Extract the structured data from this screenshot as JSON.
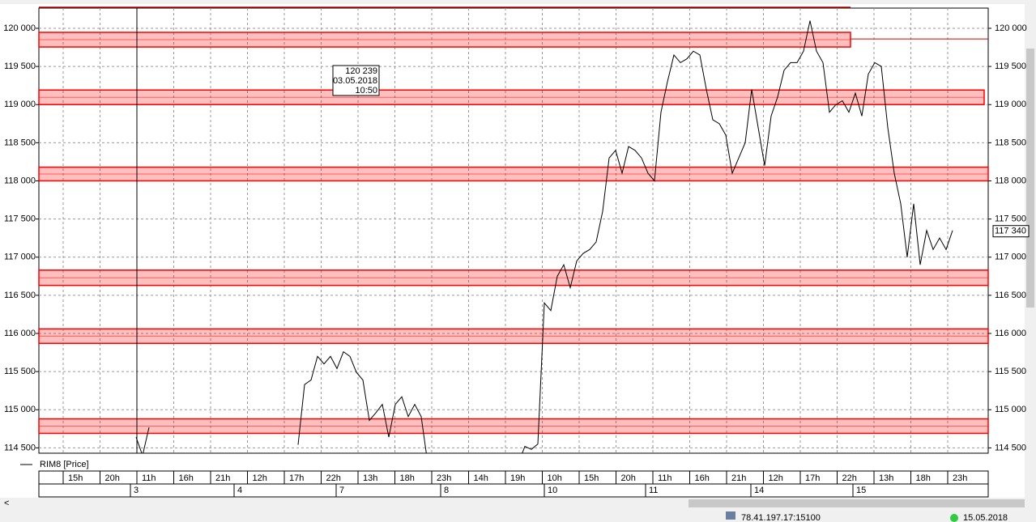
{
  "chart_data": {
    "type": "line",
    "ylim": [
      114430,
      120265
    ],
    "yticks": [
      {
        "value": 114500,
        "label": "114 500"
      },
      {
        "value": 115000,
        "label": "115 000"
      },
      {
        "value": 115500,
        "label": "115 500"
      },
      {
        "value": 116000,
        "label": "116 000"
      },
      {
        "value": 116500,
        "label": "116 500"
      },
      {
        "value": 117000,
        "label": "117 000"
      },
      {
        "value": 117500,
        "label": "117 500"
      },
      {
        "value": 118000,
        "label": "118 000"
      },
      {
        "value": 118500,
        "label": "118 500"
      },
      {
        "value": 119000,
        "label": "119 000"
      },
      {
        "value": 119500,
        "label": "119 500"
      },
      {
        "value": 120000,
        "label": "120 000"
      }
    ],
    "grid": true,
    "hour_labels": [
      "15h",
      "20h",
      "11h",
      "16h",
      "21h",
      "12h",
      "17h",
      "22h",
      "13h",
      "18h",
      "23h",
      "14h",
      "19h",
      "10h",
      "15h",
      "20h",
      "11h",
      "16h",
      "21h",
      "12h",
      "17h",
      "22h",
      "13h",
      "18h",
      "23h"
    ],
    "date_labels": [
      "3",
      "4",
      "7",
      "8",
      "10",
      "11",
      "14",
      "15"
    ],
    "series": [
      {
        "name": "RIM8 [Price]",
        "color": "#000000",
        "values": [
          114640,
          114400,
          114770,
          null,
          null,
          null,
          null,
          null,
          null,
          null,
          null,
          null,
          null,
          null,
          null,
          null,
          null,
          null,
          null,
          null,
          null,
          null,
          null,
          null,
          null,
          114540,
          115330,
          115390,
          115700,
          115600,
          115700,
          115540,
          115760,
          115700,
          115490,
          115390,
          114860,
          114960,
          115070,
          114640,
          115070,
          115170,
          114910,
          115070,
          114910,
          114300,
          null,
          null,
          null,
          null,
          null,
          null,
          null,
          null,
          null,
          null,
          null,
          null,
          null,
          114300,
          114520,
          114480,
          114550,
          116400,
          116300,
          116750,
          116900,
          116600,
          116950,
          117050,
          117100,
          117200,
          117600,
          118300,
          118400,
          118100,
          118450,
          118400,
          118300,
          118100,
          118000,
          118900,
          119300,
          119650,
          119550,
          119600,
          119700,
          119650,
          119200,
          118800,
          118750,
          118600,
          118100,
          118300,
          118500,
          119200,
          118700,
          118200,
          118850,
          119100,
          119450,
          119550,
          119550,
          119700,
          120100,
          119700,
          119550,
          118900,
          119000,
          119050,
          118900,
          119150,
          118850,
          119400,
          119550,
          119500,
          118700,
          118100,
          117700,
          117000,
          117700,
          116900,
          117350,
          117100,
          117250,
          117100,
          117350
        ]
      }
    ],
    "zones": [
      {
        "from": 119755,
        "to": 119947,
        "color": "#ff0000"
      },
      {
        "from": 119000,
        "to": 119191,
        "color": "#ff0000"
      },
      {
        "from": 118000,
        "to": 118180,
        "color": "#ff0000"
      },
      {
        "from": 116630,
        "to": 116830,
        "color": "#ff0000"
      },
      {
        "from": 115870,
        "to": 116060,
        "color": "#ff0000"
      },
      {
        "from": 114690,
        "to": 114880,
        "color": "#ff0000"
      }
    ],
    "level_line": 119860,
    "tooltip": {
      "price": {
        "value": 120239,
        "label": "120 239"
      },
      "date": "03.05.2018",
      "time": "10:50"
    },
    "last_price": {
      "value": 117340,
      "label": "117 340"
    }
  },
  "status_bar": {
    "server": "78.41.197.17:15100",
    "date": "15.05.2018"
  }
}
